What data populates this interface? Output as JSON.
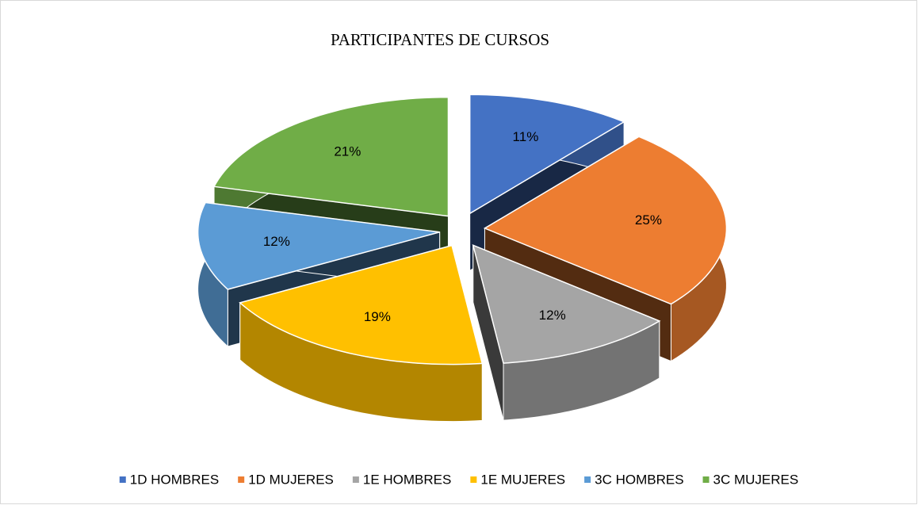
{
  "chart_data": {
    "type": "pie",
    "title": "PARTICIPANTES DE CURSOS",
    "categories": [
      "1D HOMBRES",
      "1D MUJERES",
      "1E HOMBRES",
      "1E MUJERES",
      "3C HOMBRES",
      "3C MUJERES"
    ],
    "values": [
      11,
      25,
      12,
      19,
      12,
      21
    ],
    "value_labels": [
      "11%",
      "25%",
      "12%",
      "19%",
      "12%",
      "21%"
    ],
    "colors": [
      "#4472c4",
      "#ed7d31",
      "#a5a5a5",
      "#ffc000",
      "#5b9bd5",
      "#70ad47"
    ],
    "legend": "bottom"
  }
}
